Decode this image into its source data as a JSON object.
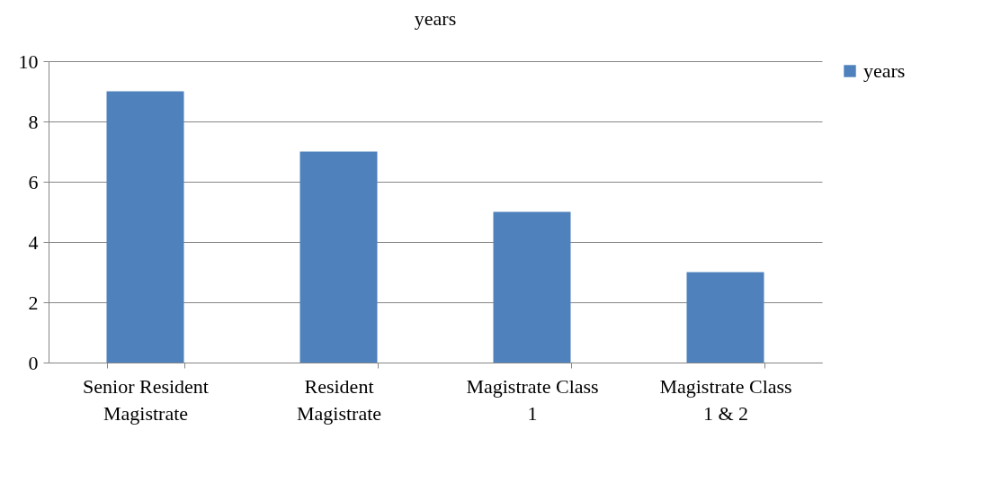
{
  "chart_data": {
    "type": "bar",
    "title": "years",
    "categories": [
      "Senior Resident Magistrate",
      "Resident Magistrate",
      "Magistrate Class 1",
      "Magistrate Class 1 & 2"
    ],
    "series": [
      {
        "name": "years",
        "color": "#4f81bd",
        "values": [
          9,
          7,
          5,
          3
        ]
      }
    ],
    "ylim": [
      0,
      10
    ],
    "yticks": [
      0,
      2,
      4,
      6,
      8,
      10
    ],
    "grid": "y",
    "legend": "right"
  }
}
